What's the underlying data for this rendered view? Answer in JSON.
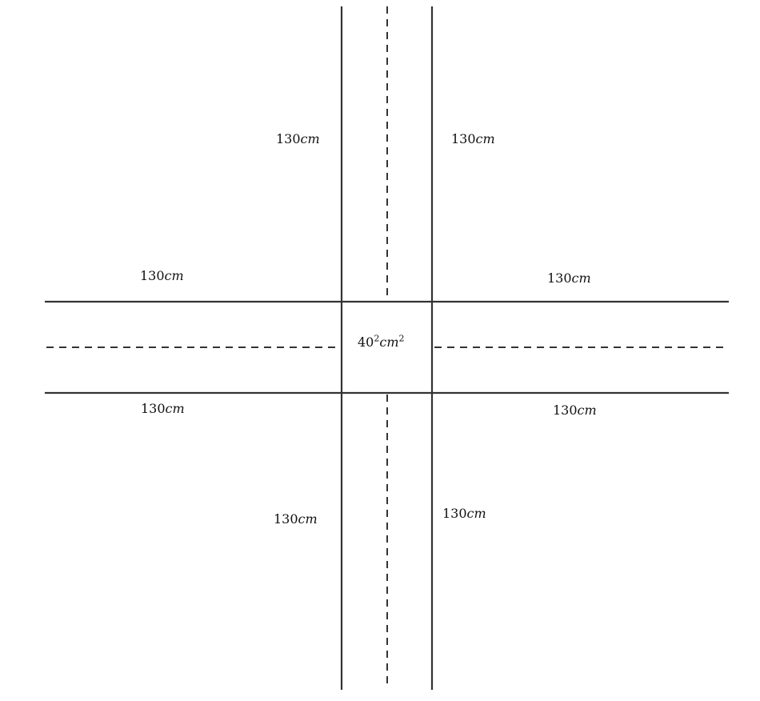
{
  "diagram": {
    "center_label": {
      "base": "40",
      "exp": "2",
      "unit": "cm",
      "unit_exp": "2"
    },
    "arm_labels": [
      {
        "id": "top-left",
        "value": "130",
        "unit": "cm"
      },
      {
        "id": "top-right",
        "value": "130",
        "unit": "cm"
      },
      {
        "id": "left-top",
        "value": "130",
        "unit": "cm"
      },
      {
        "id": "right-top",
        "value": "130",
        "unit": "cm"
      },
      {
        "id": "left-bottom",
        "value": "130",
        "unit": "cm"
      },
      {
        "id": "right-bottom",
        "value": "130",
        "unit": "cm"
      },
      {
        "id": "bottom-left",
        "value": "130",
        "unit": "cm"
      },
      {
        "id": "bottom-right",
        "value": "130",
        "unit": "cm"
      }
    ]
  }
}
